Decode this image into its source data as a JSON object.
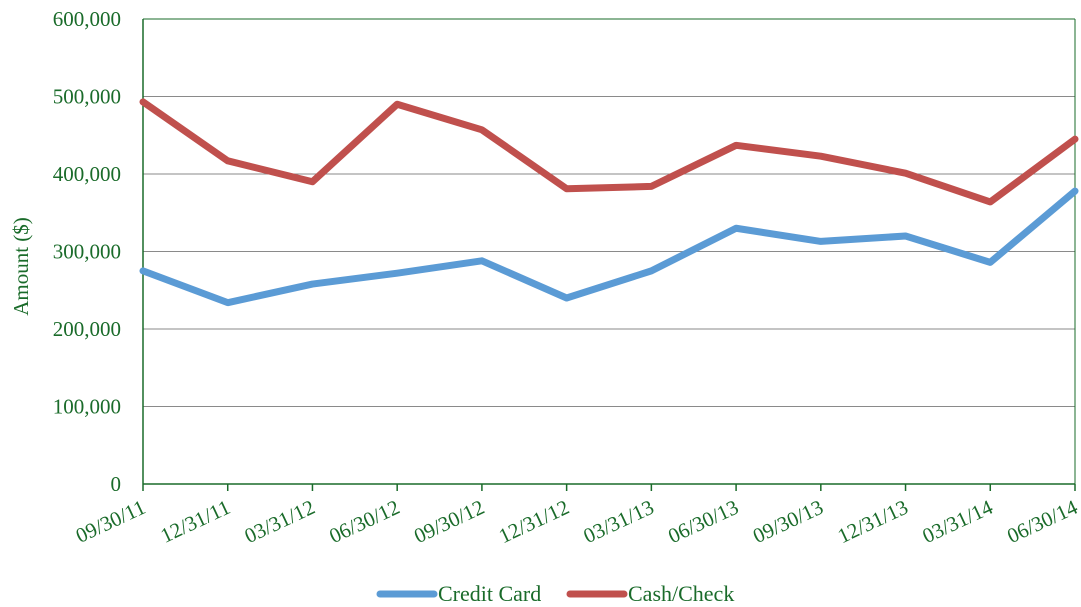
{
  "chart_data": {
    "type": "line",
    "title": "",
    "xlabel": "",
    "ylabel": "Amount ($)",
    "ylim": [
      0,
      600000
    ],
    "y_ticks": [
      "0",
      "100,000",
      "200,000",
      "300,000",
      "400,000",
      "500,000",
      "600,000"
    ],
    "y_tick_values": [
      0,
      100000,
      200000,
      300000,
      400000,
      500000,
      600000
    ],
    "categories": [
      "09/30/11",
      "12/31/11",
      "03/31/12",
      "06/30/12",
      "09/30/12",
      "12/31/12",
      "03/31/13",
      "06/30/13",
      "09/30/13",
      "12/31/13",
      "03/31/14",
      "06/30/14"
    ],
    "grid": true,
    "legend_position": "bottom",
    "series": [
      {
        "name": "Credit Card",
        "color": "#5b9bd5",
        "values": [
          275000,
          234000,
          258000,
          272000,
          288000,
          240000,
          275000,
          330000,
          313000,
          320000,
          286000,
          378000
        ]
      },
      {
        "name": "Cash/Check",
        "color": "#c0504d",
        "values": [
          493000,
          417000,
          390000,
          490000,
          457000,
          381000,
          384000,
          437000,
          423000,
          401000,
          364000,
          445000
        ]
      }
    ]
  }
}
